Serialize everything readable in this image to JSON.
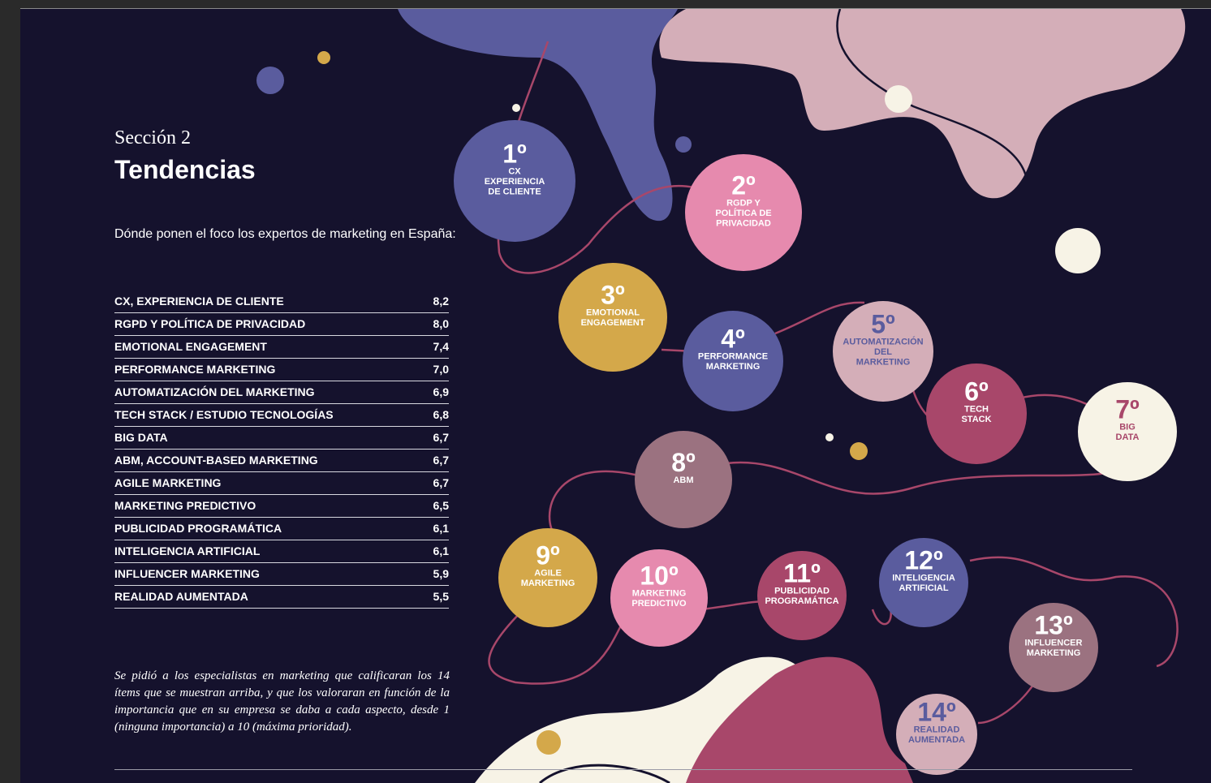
{
  "header": {
    "section": "Sección 2",
    "title": "Tendencias",
    "subtitle": "Dónde ponen el foco los expertos de marketing en España:"
  },
  "table": {
    "rows": [
      [
        "CX, EXPERIENCIA DE CLIENTE",
        "8,2"
      ],
      [
        "RGPD Y POLÍTICA DE PRIVACIDAD",
        "8,0"
      ],
      [
        "EMOTIONAL ENGAGEMENT",
        "7,4"
      ],
      [
        "PERFORMANCE MARKETING",
        "7,0"
      ],
      [
        "AUTOMATIZACIÓN DEL MARKETING",
        "6,9"
      ],
      [
        "TECH STACK / ESTUDIO TECNOLOGÍAS",
        "6,8"
      ],
      [
        "BIG DATA",
        "6,7"
      ],
      [
        "ABM, ACCOUNT-BASED MARKETING",
        "6,7"
      ],
      [
        "AGILE MARKETING",
        "6,7"
      ],
      [
        "MARKETING PREDICTIVO",
        "6,5"
      ],
      [
        "PUBLICIDAD PROGRAMÁTICA",
        "6,1"
      ],
      [
        "INTELIGENCIA ARTIFICIAL",
        "6,1"
      ],
      [
        "INFLUENCER MARKETING",
        "5,9"
      ],
      [
        "REALIDAD AUMENTADA",
        "5,5"
      ]
    ]
  },
  "note": "Se pidió a los especialistas en marketing que calificaran los 14 ítems que se muestran arriba, y que los valoraran en función de la importancia que en su empresa se daba a cada aspecto, desde 1 (ninguna importancia) a 10 (máxima prioridad).",
  "circles": [
    {
      "rank": "1º",
      "lines": [
        "CX",
        "EXPERIENCIA",
        "DE CLIENTE"
      ]
    },
    {
      "rank": "2º",
      "lines": [
        "RGDP Y",
        "POLÍTICA DE",
        "PRIVACIDAD"
      ]
    },
    {
      "rank": "3º",
      "lines": [
        "EMOTIONAL",
        "ENGAGEMENT"
      ]
    },
    {
      "rank": "4º",
      "lines": [
        "PERFORMANCE",
        "MARKETING"
      ]
    },
    {
      "rank": "5º",
      "lines": [
        "AUTOMATIZACIÓN",
        "DEL",
        "MARKETING"
      ]
    },
    {
      "rank": "6º",
      "lines": [
        "TECH",
        "STACK"
      ]
    },
    {
      "rank": "7º",
      "lines": [
        "BIG",
        "DATA"
      ]
    },
    {
      "rank": "8º",
      "lines": [
        "ABM"
      ]
    },
    {
      "rank": "9º",
      "lines": [
        "AGILE",
        "MARKETING"
      ]
    },
    {
      "rank": "10º",
      "lines": [
        "MARKETING",
        "PREDICTIVO"
      ]
    },
    {
      "rank": "11º",
      "lines": [
        "PUBLICIDAD",
        "PROGRAMÁTICA"
      ]
    },
    {
      "rank": "12º",
      "lines": [
        "INTELIGENCIA",
        "ARTIFICIAL"
      ]
    },
    {
      "rank": "13º",
      "lines": [
        "INFLUENCER",
        "MARKETING"
      ]
    },
    {
      "rank": "14º",
      "lines": [
        "REALIDAD",
        "AUMENTADA"
      ]
    }
  ]
}
